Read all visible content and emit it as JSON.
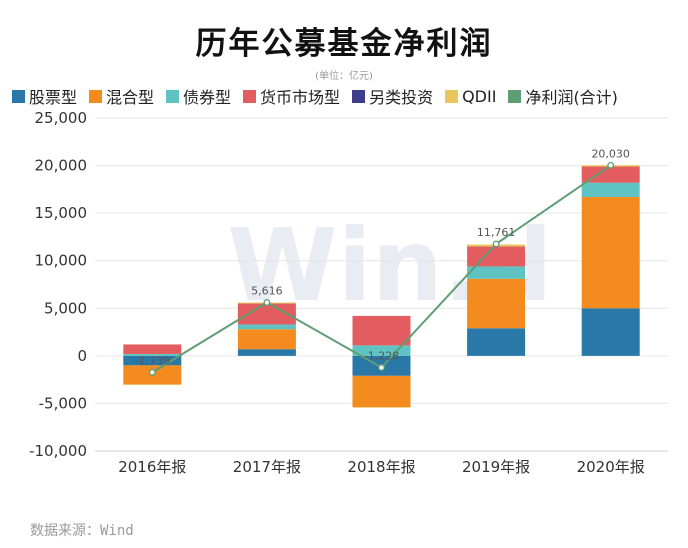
{
  "chart_data": {
    "type": "bar",
    "title": "历年公募基金净利润",
    "unit": "(单位：亿元)",
    "categories": [
      "2016年报",
      "2017年报",
      "2018年报",
      "2019年报",
      "2020年报"
    ],
    "series": [
      {
        "name": "股票型",
        "color": "#2a78a8",
        "values": [
          -1000,
          700,
          -2100,
          2900,
          5000
        ]
      },
      {
        "name": "混合型",
        "color": "#f48b1f",
        "values": [
          -2000,
          2100,
          -3300,
          5200,
          11700
        ]
      },
      {
        "name": "债券型",
        "color": "#5ec3c2",
        "values": [
          200,
          500,
          1100,
          1300,
          1500
        ]
      },
      {
        "name": "货币市场型",
        "color": "#e35d60",
        "values": [
          1000,
          2200,
          3100,
          2100,
          1700
        ]
      },
      {
        "name": "另类投资",
        "color": "#3e3d8c",
        "values": [
          0,
          0,
          0,
          0,
          0
        ]
      },
      {
        "name": "QDII",
        "color": "#e9c75c",
        "values": [
          -30,
          100,
          -20,
          200,
          130
        ]
      }
    ],
    "line": {
      "name": "净利润(合计)",
      "color": "#5e9e74",
      "values": [
        -1739,
        5616,
        -1228,
        11761,
        20030
      ],
      "labels": [
        "-1,739",
        "5,616",
        "-1,228",
        "11,761",
        "20,030"
      ]
    },
    "ylim": [
      -10000,
      25000
    ],
    "yticks": [
      -10000,
      -5000,
      0,
      5000,
      10000,
      15000,
      20000,
      25000
    ],
    "ytick_labels": [
      "-10,000",
      "-5,000",
      "0",
      "5,000",
      "10,000",
      "15,000",
      "20,000",
      "25,000"
    ],
    "xlabel": "",
    "ylabel": "",
    "legend_position": "top",
    "grid": true,
    "watermark": "Win.d"
  },
  "source": "数据来源：Wind"
}
